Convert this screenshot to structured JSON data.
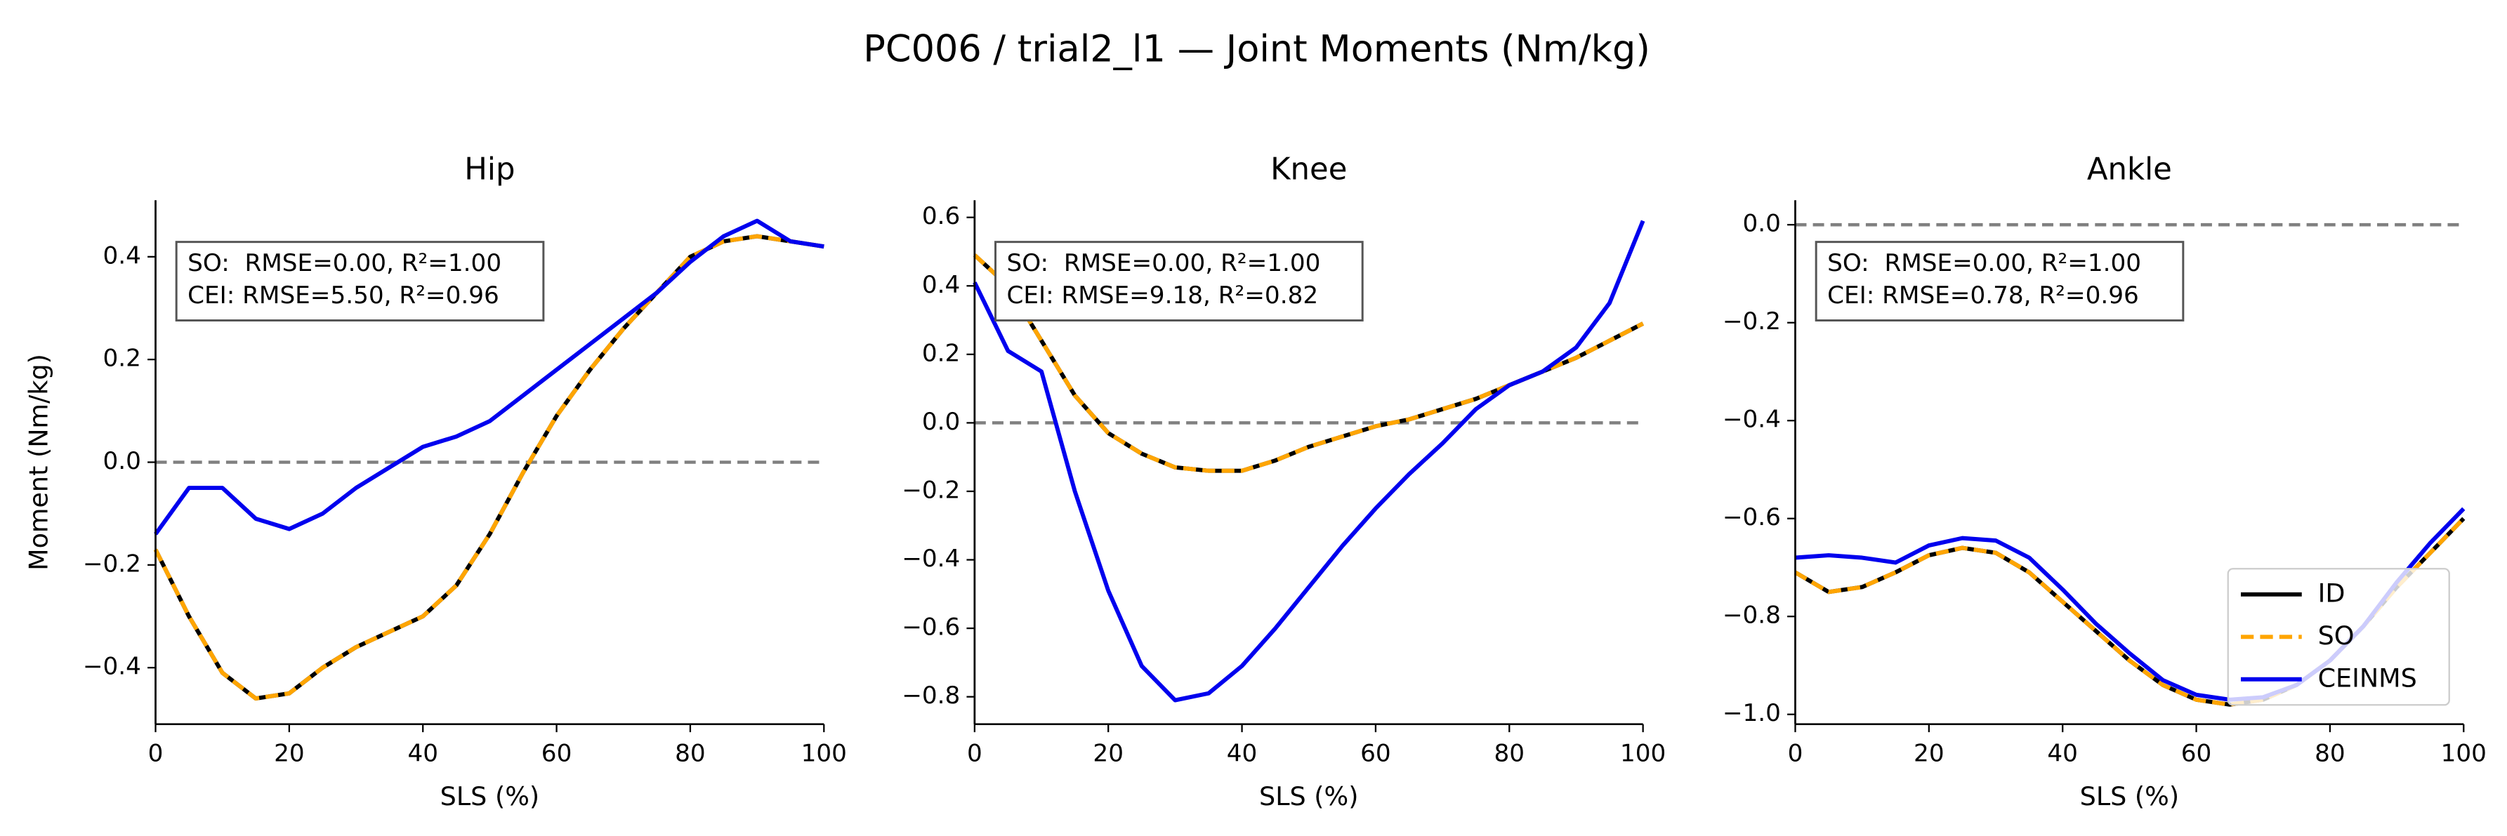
{
  "title": "PC006 / trial2_l1 — Joint Moments (Nm/kg)",
  "chart_data": [
    {
      "type": "line",
      "title": "Hip",
      "xlabel": "SLS (%)",
      "ylabel": "Moment (Nm/kg)",
      "x": [
        0,
        5,
        10,
        15,
        20,
        25,
        30,
        35,
        40,
        45,
        50,
        55,
        60,
        65,
        70,
        75,
        80,
        85,
        90,
        95,
        100
      ],
      "series": [
        {
          "name": "ID",
          "color": "#000000",
          "dash": false,
          "values": [
            -0.17,
            -0.3,
            -0.41,
            -0.46,
            -0.45,
            -0.4,
            -0.36,
            -0.33,
            -0.3,
            -0.24,
            -0.14,
            -0.02,
            0.09,
            0.18,
            0.26,
            0.33,
            0.4,
            0.43,
            0.44,
            0.43,
            0.42
          ]
        },
        {
          "name": "SO",
          "color": "#ffa500",
          "dash": true,
          "values": [
            -0.17,
            -0.3,
            -0.41,
            -0.46,
            -0.45,
            -0.4,
            -0.36,
            -0.33,
            -0.3,
            -0.24,
            -0.14,
            -0.02,
            0.09,
            0.18,
            0.26,
            0.33,
            0.4,
            0.43,
            0.44,
            0.43,
            0.42
          ]
        },
        {
          "name": "CEINMS",
          "color": "#0000ee",
          "dash": false,
          "values": [
            -0.14,
            -0.05,
            -0.05,
            -0.11,
            -0.13,
            -0.1,
            -0.05,
            -0.01,
            0.03,
            0.05,
            0.08,
            0.13,
            0.18,
            0.23,
            0.28,
            0.33,
            0.39,
            0.44,
            0.47,
            0.43,
            0.42
          ]
        }
      ],
      "xlim": [
        0,
        100
      ],
      "xticks": [
        0,
        20,
        40,
        60,
        80,
        100
      ],
      "ylim": [
        -0.51,
        0.51
      ],
      "yticks": [
        {
          "value": -0.4,
          "label": "−0.4"
        },
        {
          "value": -0.2,
          "label": "−0.2"
        },
        {
          "value": 0,
          "label": "0.0"
        },
        {
          "value": 0.2,
          "label": "0.2"
        },
        {
          "value": 0.4,
          "label": "0.4"
        }
      ],
      "reference_line": 0,
      "annotation": [
        "SO:  RMSE=0.00, R²=1.00",
        "CEI: RMSE=5.50, R²=0.96"
      ],
      "legend": false
    },
    {
      "type": "line",
      "title": "Knee",
      "xlabel": "SLS (%)",
      "x": [
        0,
        5,
        10,
        15,
        20,
        25,
        30,
        35,
        40,
        45,
        50,
        55,
        60,
        65,
        70,
        75,
        80,
        85,
        90,
        95,
        100
      ],
      "series": [
        {
          "name": "ID",
          "color": "#000000",
          "dash": false,
          "values": [
            0.49,
            0.4,
            0.24,
            0.08,
            -0.03,
            -0.09,
            -0.13,
            -0.14,
            -0.14,
            -0.11,
            -0.07,
            -0.04,
            -0.01,
            0.01,
            0.04,
            0.07,
            0.11,
            0.15,
            0.19,
            0.24,
            0.29
          ]
        },
        {
          "name": "SO",
          "color": "#ffa500",
          "dash": true,
          "values": [
            0.49,
            0.4,
            0.24,
            0.08,
            -0.03,
            -0.09,
            -0.13,
            -0.14,
            -0.14,
            -0.11,
            -0.07,
            -0.04,
            -0.01,
            0.01,
            0.04,
            0.07,
            0.11,
            0.15,
            0.19,
            0.24,
            0.29
          ]
        },
        {
          "name": "CEINMS",
          "color": "#0000ee",
          "dash": false,
          "values": [
            0.41,
            0.21,
            0.15,
            -0.2,
            -0.49,
            -0.71,
            -0.81,
            -0.79,
            -0.71,
            -0.6,
            -0.48,
            -0.36,
            -0.25,
            -0.15,
            -0.06,
            0.04,
            0.11,
            0.15,
            0.22,
            0.35,
            0.59
          ]
        }
      ],
      "xlim": [
        0,
        100
      ],
      "xticks": [
        0,
        20,
        40,
        60,
        80,
        100
      ],
      "ylim": [
        -0.88,
        0.65
      ],
      "yticks": [
        {
          "value": -0.8,
          "label": "−0.8"
        },
        {
          "value": -0.6,
          "label": "−0.6"
        },
        {
          "value": -0.4,
          "label": "−0.4"
        },
        {
          "value": -0.2,
          "label": "−0.2"
        },
        {
          "value": 0,
          "label": "0.0"
        },
        {
          "value": 0.2,
          "label": "0.2"
        },
        {
          "value": 0.4,
          "label": "0.4"
        },
        {
          "value": 0.6,
          "label": "0.6"
        }
      ],
      "reference_line": 0,
      "annotation": [
        "SO:  RMSE=0.00, R²=1.00",
        "CEI: RMSE=9.18, R²=0.82"
      ],
      "legend": false
    },
    {
      "type": "line",
      "title": "Ankle",
      "xlabel": "SLS (%)",
      "x": [
        0,
        5,
        10,
        15,
        20,
        25,
        30,
        35,
        40,
        45,
        50,
        55,
        60,
        65,
        70,
        75,
        80,
        85,
        90,
        95,
        100
      ],
      "series": [
        {
          "name": "ID",
          "color": "#000000",
          "dash": false,
          "values": [
            -0.71,
            -0.75,
            -0.74,
            -0.71,
            -0.675,
            -0.66,
            -0.67,
            -0.71,
            -0.77,
            -0.83,
            -0.89,
            -0.94,
            -0.97,
            -0.98,
            -0.97,
            -0.94,
            -0.89,
            -0.82,
            -0.74,
            -0.67,
            -0.6
          ]
        },
        {
          "name": "SO",
          "color": "#ffa500",
          "dash": true,
          "values": [
            -0.71,
            -0.75,
            -0.74,
            -0.71,
            -0.675,
            -0.66,
            -0.67,
            -0.71,
            -0.77,
            -0.83,
            -0.89,
            -0.94,
            -0.97,
            -0.98,
            -0.97,
            -0.94,
            -0.89,
            -0.82,
            -0.74,
            -0.67,
            -0.6
          ]
        },
        {
          "name": "CEINMS",
          "color": "#0000ee",
          "dash": false,
          "values": [
            -0.68,
            -0.675,
            -0.68,
            -0.69,
            -0.655,
            -0.64,
            -0.645,
            -0.68,
            -0.745,
            -0.815,
            -0.875,
            -0.93,
            -0.96,
            -0.97,
            -0.965,
            -0.94,
            -0.89,
            -0.82,
            -0.73,
            -0.65,
            -0.58
          ]
        }
      ],
      "xlim": [
        0,
        100
      ],
      "xticks": [
        0,
        20,
        40,
        60,
        80,
        100
      ],
      "ylim": [
        -1.02,
        0.05
      ],
      "yticks": [
        {
          "value": -1.0,
          "label": "−1.0"
        },
        {
          "value": -0.8,
          "label": "−0.8"
        },
        {
          "value": -0.6,
          "label": "−0.6"
        },
        {
          "value": -0.4,
          "label": "−0.4"
        },
        {
          "value": -0.2,
          "label": "−0.2"
        },
        {
          "value": 0,
          "label": "0.0"
        }
      ],
      "reference_line": 0,
      "annotation": [
        "SO:  RMSE=0.00, R²=1.00",
        "CEI: RMSE=0.78, R²=0.96"
      ],
      "legend": "lower right"
    }
  ]
}
